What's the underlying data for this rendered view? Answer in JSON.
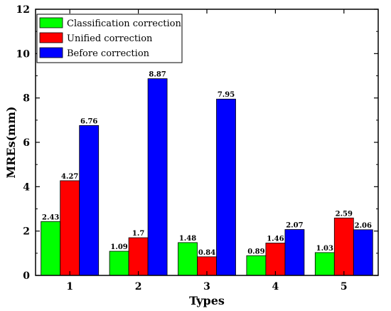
{
  "chart_data": {
    "type": "bar",
    "xlabel": "Types",
    "ylabel": "MREs(mm)",
    "categories": [
      "1",
      "2",
      "3",
      "4",
      "5"
    ],
    "ylim": [
      0,
      12
    ],
    "yticks": [
      "0",
      "2",
      "4",
      "6",
      "8",
      "10",
      "12"
    ],
    "grid": false,
    "legend_position": "top-left",
    "series": [
      {
        "name": "Classification correction",
        "color": "#00ff00",
        "values": [
          2.43,
          1.09,
          1.48,
          0.89,
          1.03
        ],
        "labels": [
          "2.43",
          "1.09",
          "1.48",
          "0.89",
          "1.03"
        ]
      },
      {
        "name": "Unified correction",
        "color": "#ff0000",
        "values": [
          4.27,
          1.7,
          0.84,
          1.46,
          2.59
        ],
        "labels": [
          "4.27",
          "1.7",
          "0.84",
          "1.46",
          "2.59"
        ]
      },
      {
        "name": "Before correction",
        "color": "#0000ff",
        "values": [
          6.76,
          8.87,
          7.95,
          2.07,
          2.06
        ],
        "labels": [
          "6.76",
          "8.87",
          "7.95",
          "2.07",
          "2.06"
        ]
      }
    ]
  }
}
